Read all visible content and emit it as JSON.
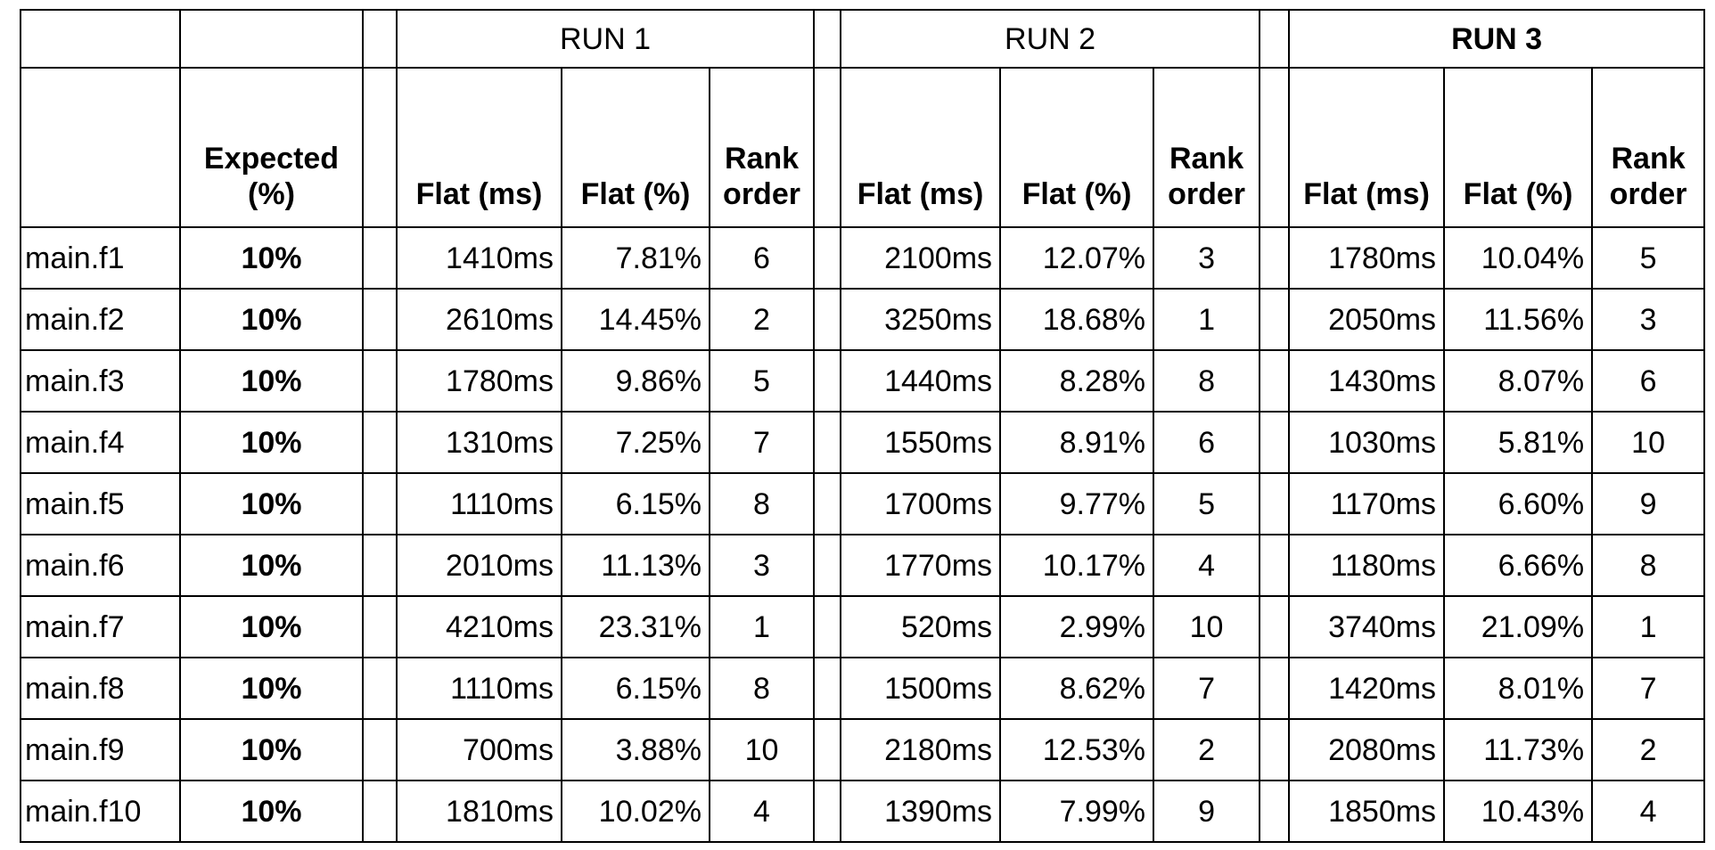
{
  "runs": [
    {
      "label": "RUN 1",
      "bold": false
    },
    {
      "label": "RUN 2",
      "bold": false
    },
    {
      "label": "RUN 3",
      "bold": true
    }
  ],
  "headers": {
    "expected": "Expected (%)",
    "flat_ms": "Flat (ms)",
    "flat_pct": "Flat (%)",
    "rank": "Rank order"
  },
  "rows": [
    {
      "name": "main.f1",
      "expected": "10%",
      "runs": [
        [
          "1410ms",
          "7.81%",
          "6"
        ],
        [
          "2100ms",
          "12.07%",
          "3"
        ],
        [
          "1780ms",
          "10.04%",
          "5"
        ]
      ]
    },
    {
      "name": "main.f2",
      "expected": "10%",
      "runs": [
        [
          "2610ms",
          "14.45%",
          "2"
        ],
        [
          "3250ms",
          "18.68%",
          "1"
        ],
        [
          "2050ms",
          "11.56%",
          "3"
        ]
      ]
    },
    {
      "name": "main.f3",
      "expected": "10%",
      "runs": [
        [
          "1780ms",
          "9.86%",
          "5"
        ],
        [
          "1440ms",
          "8.28%",
          "8"
        ],
        [
          "1430ms",
          "8.07%",
          "6"
        ]
      ]
    },
    {
      "name": "main.f4",
      "expected": "10%",
      "runs": [
        [
          "1310ms",
          "7.25%",
          "7"
        ],
        [
          "1550ms",
          "8.91%",
          "6"
        ],
        [
          "1030ms",
          "5.81%",
          "10"
        ]
      ]
    },
    {
      "name": "main.f5",
      "expected": "10%",
      "runs": [
        [
          "1110ms",
          "6.15%",
          "8"
        ],
        [
          "1700ms",
          "9.77%",
          "5"
        ],
        [
          "1170ms",
          "6.60%",
          "9"
        ]
      ]
    },
    {
      "name": "main.f6",
      "expected": "10%",
      "runs": [
        [
          "2010ms",
          "11.13%",
          "3"
        ],
        [
          "1770ms",
          "10.17%",
          "4"
        ],
        [
          "1180ms",
          "6.66%",
          "8"
        ]
      ]
    },
    {
      "name": "main.f7",
      "expected": "10%",
      "runs": [
        [
          "4210ms",
          "23.31%",
          "1"
        ],
        [
          "520ms",
          "2.99%",
          "10"
        ],
        [
          "3740ms",
          "21.09%",
          "1"
        ]
      ]
    },
    {
      "name": "main.f8",
      "expected": "10%",
      "runs": [
        [
          "1110ms",
          "6.15%",
          "8"
        ],
        [
          "1500ms",
          "8.62%",
          "7"
        ],
        [
          "1420ms",
          "8.01%",
          "7"
        ]
      ]
    },
    {
      "name": "main.f9",
      "expected": "10%",
      "runs": [
        [
          "700ms",
          "3.88%",
          "10"
        ],
        [
          "2180ms",
          "12.53%",
          "2"
        ],
        [
          "2080ms",
          "11.73%",
          "2"
        ]
      ]
    },
    {
      "name": "main.f10",
      "expected": "10%",
      "runs": [
        [
          "1810ms",
          "10.02%",
          "4"
        ],
        [
          "1390ms",
          "7.99%",
          "9"
        ],
        [
          "1850ms",
          "10.43%",
          "4"
        ]
      ]
    }
  ]
}
